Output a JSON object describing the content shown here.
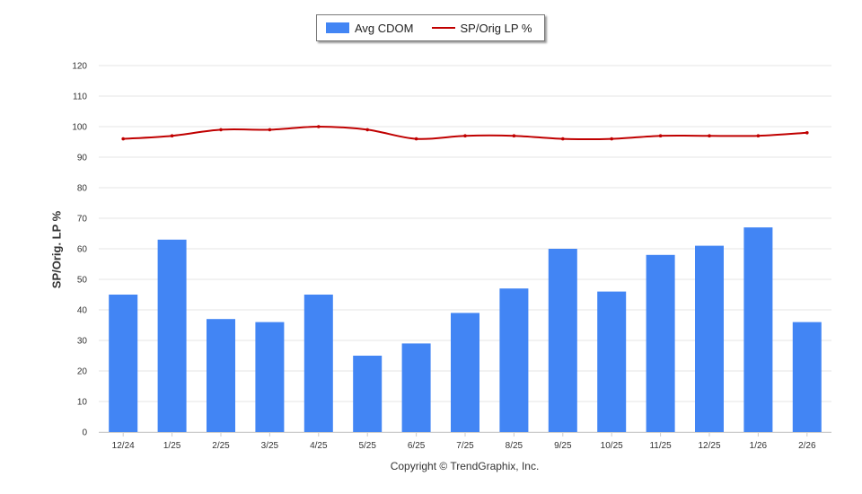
{
  "chart_data": {
    "type": "bar",
    "categories": [
      "12/24",
      "1/25",
      "2/25",
      "3/25",
      "4/25",
      "5/25",
      "6/25",
      "7/25",
      "8/25",
      "9/25",
      "10/25",
      "11/25",
      "12/25",
      "1/26",
      "2/26"
    ],
    "series": [
      {
        "name": "Avg CDOM",
        "type": "bar",
        "color": "#4285f4",
        "values": [
          45,
          63,
          37,
          36,
          45,
          25,
          29,
          39,
          47,
          60,
          46,
          58,
          61,
          67,
          36
        ]
      },
      {
        "name": "SP/Orig LP %",
        "type": "line",
        "color": "#c00000",
        "values": [
          96,
          97,
          99,
          99,
          100,
          99,
          96,
          97,
          97,
          96,
          96,
          97,
          97,
          97,
          98
        ]
      }
    ],
    "ylabel": "SP/Orig. LP %",
    "ylim": [
      0,
      120
    ],
    "yticks": [
      0,
      10,
      20,
      30,
      40,
      50,
      60,
      70,
      80,
      90,
      100,
      110,
      120
    ],
    "grid": true,
    "legend_position": "top-center"
  },
  "footer": {
    "copyright": "Copyright © TrendGraphix, Inc."
  }
}
